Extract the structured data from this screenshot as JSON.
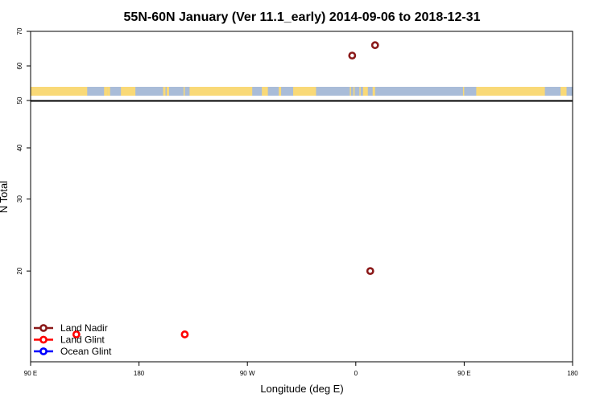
{
  "chart_data": {
    "type": "scatter",
    "title": "55N-60N January (Ver 11.1_early)   2014-09-06 to 2018-12-31",
    "xlabel": "Longitude (deg E)",
    "ylabel": "N Total",
    "xlim": [
      90,
      540
    ],
    "x_ticks": [
      {
        "value": 90,
        "label": "90 E"
      },
      {
        "value": 180,
        "label": "180"
      },
      {
        "value": 270,
        "label": "90 W"
      },
      {
        "value": 360,
        "label": "0"
      },
      {
        "value": 450,
        "label": "90 E"
      },
      {
        "value": 540,
        "label": "180"
      }
    ],
    "upper_panel": {
      "ylim": [
        50,
        70
      ],
      "y_ticks": [
        50,
        60,
        70
      ],
      "map_strip": {
        "ocean_color": "#a9bcd8",
        "land_color": "#f9d977",
        "land_spans": [
          [
            90,
            137
          ],
          [
            151,
            154
          ],
          [
            154,
            156
          ],
          [
            165,
            177
          ],
          [
            200,
            202
          ],
          [
            203,
            205
          ],
          [
            218,
            217
          ],
          [
            222,
            274
          ],
          [
            282,
            287
          ],
          [
            296,
            298
          ],
          [
            308,
            327
          ],
          [
            355,
            356
          ],
          [
            358,
            359
          ],
          [
            363,
            364
          ],
          [
            366,
            370
          ],
          [
            374,
            376
          ],
          [
            449,
            450
          ],
          [
            460,
            517
          ],
          [
            530,
            535
          ]
        ]
      }
    },
    "lower_panel": {
      "ylim": [
        12,
        52
      ],
      "log_scale": true,
      "y_ticks": [
        20,
        30,
        40
      ]
    },
    "series": [
      {
        "name": "Land Nadir",
        "color": "#8b1a1a",
        "points": [
          {
            "x": 357,
            "y": 63
          },
          {
            "x": 376,
            "y": 66
          },
          {
            "x": 372,
            "y": 20
          }
        ]
      },
      {
        "name": "Land Glint",
        "color": "#ff0000",
        "points": [
          {
            "x": 128,
            "y": 14
          },
          {
            "x": 218,
            "y": 14
          }
        ]
      },
      {
        "name": "Ocean Glint",
        "color": "#0000ff",
        "points": []
      }
    ],
    "legend_position": "bottom-left",
    "grid": false
  }
}
